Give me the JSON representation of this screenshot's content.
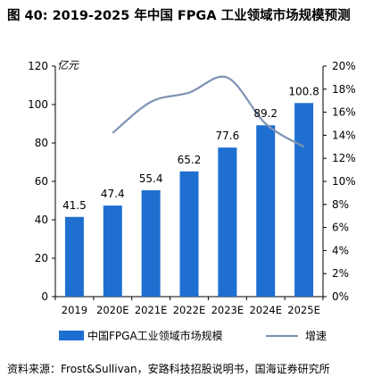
{
  "figure_title": "图 40:  2019-2025 年中国 FPGA 工业领域市场规模预测",
  "source_note": "资料来源：Frost&Sullivan，安路科技招股说明书，国海证券研究所",
  "chart_data": {
    "type": "bar",
    "categories": [
      "2019",
      "2020E",
      "2021E",
      "2022E",
      "2023E",
      "2024E",
      "2025E"
    ],
    "series": [
      {
        "name": "中国FPGA工业领域市场规模",
        "type": "bar",
        "axis": "left",
        "values": [
          41.5,
          47.4,
          55.4,
          65.2,
          77.6,
          89.2,
          100.8
        ],
        "color": "#1f6fd1"
      },
      {
        "name": "增速",
        "type": "line",
        "axis": "right",
        "values": [
          null,
          14.2,
          16.9,
          17.7,
          19.0,
          15.0,
          13.0
        ],
        "color": "#7f93b5"
      }
    ],
    "left_axis": {
      "unit_label": "亿元",
      "min": 0,
      "max": 120,
      "ticks": [
        "0",
        "20",
        "40",
        "60",
        "80",
        "100",
        "120"
      ]
    },
    "right_axis": {
      "min": 0,
      "max": 20,
      "ticks": [
        "0%",
        "2%",
        "4%",
        "6%",
        "8%",
        "10%",
        "12%",
        "14%",
        "16%",
        "18%",
        "20%"
      ]
    },
    "data_labels": [
      "41.5",
      "47.4",
      "55.4",
      "65.2",
      "77.6",
      "89.2",
      "100.8"
    ],
    "grid": false,
    "legend_position": "bottom"
  }
}
